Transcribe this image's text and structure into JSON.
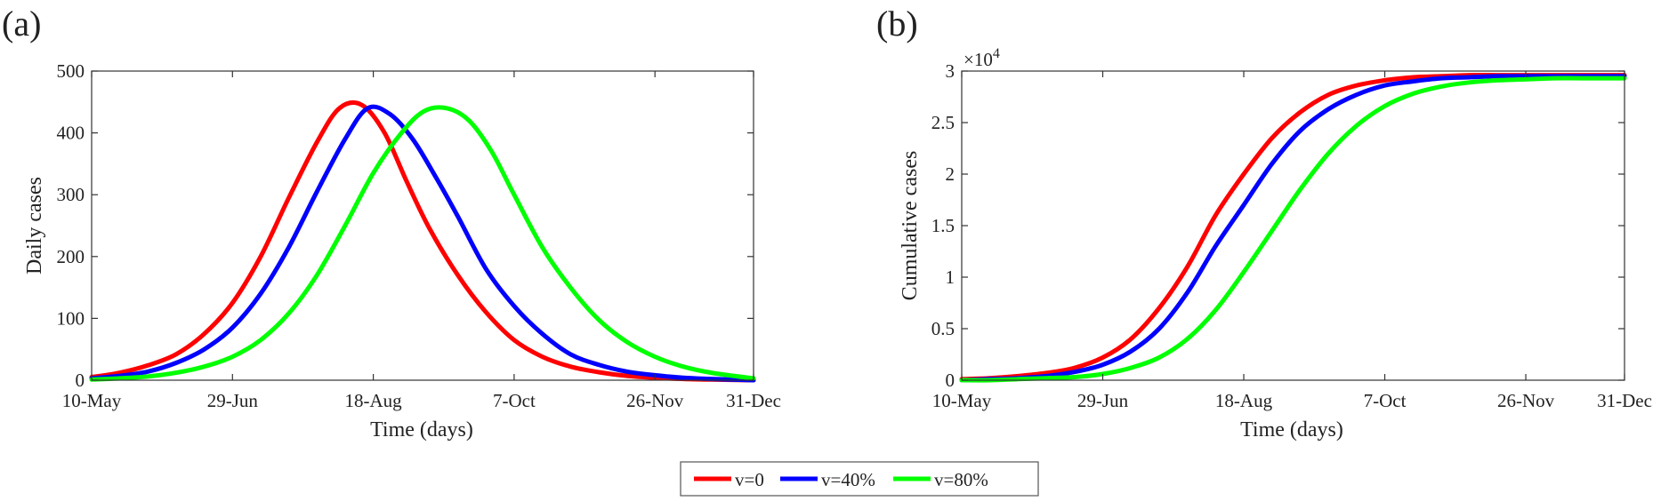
{
  "panels": [
    {
      "letter": "(a)",
      "xlabel": "Time (days)",
      "ylabel": "Daily cases",
      "exponent_label": ""
    },
    {
      "letter": "(b)",
      "xlabel": "Time (days)",
      "ylabel": "Cumulative cases",
      "exponent_label": "×10"
    }
  ],
  "legend": [
    "v=0",
    "v=40%",
    "v=80%"
  ],
  "colors": {
    "v0": "#ff0000",
    "v40": "#0000ff",
    "v80": "#00ff00"
  },
  "chart_data": [
    {
      "type": "line",
      "title": "(a)",
      "xlabel": "Time (days)",
      "ylabel": "Daily cases",
      "x_ticks": [
        {
          "day": 0,
          "label": "10-May"
        },
        {
          "day": 50,
          "label": "29-Jun"
        },
        {
          "day": 100,
          "label": "18-Aug"
        },
        {
          "day": 150,
          "label": "7-Oct"
        },
        {
          "day": 200,
          "label": "26-Nov"
        },
        {
          "day": 235,
          "label": "31-Dec"
        }
      ],
      "y_ticks": [
        {
          "v": 0,
          "label": "0"
        },
        {
          "v": 100,
          "label": "100"
        },
        {
          "v": 200,
          "label": "200"
        },
        {
          "v": 300,
          "label": "300"
        },
        {
          "v": 400,
          "label": "400"
        },
        {
          "v": 500,
          "label": "500"
        }
      ],
      "xlim": [
        0,
        235
      ],
      "ylim": [
        0,
        500
      ],
      "series": [
        {
          "name": "v=0",
          "color": "#ff0000",
          "x": [
            0,
            10,
            20,
            30,
            40,
            50,
            60,
            70,
            80,
            88,
            96,
            104,
            112,
            120,
            130,
            140,
            150,
            160,
            170,
            180,
            190,
            200,
            210,
            220,
            235
          ],
          "y": [
            5,
            12,
            24,
            42,
            75,
            125,
            200,
            295,
            385,
            440,
            445,
            400,
            320,
            245,
            170,
            110,
            65,
            38,
            22,
            13,
            7,
            4,
            2,
            1,
            0
          ]
        },
        {
          "name": "v=40%",
          "color": "#0000ff",
          "x": [
            0,
            10,
            20,
            30,
            40,
            50,
            60,
            70,
            80,
            90,
            98,
            106,
            114,
            122,
            130,
            140,
            150,
            160,
            170,
            180,
            190,
            200,
            210,
            220,
            235
          ],
          "y": [
            3,
            7,
            14,
            28,
            50,
            85,
            140,
            215,
            305,
            390,
            440,
            430,
            390,
            330,
            265,
            180,
            120,
            75,
            42,
            25,
            14,
            8,
            4,
            2,
            0
          ]
        },
        {
          "name": "v=80%",
          "color": "#00ff00",
          "x": [
            0,
            10,
            20,
            30,
            40,
            50,
            60,
            70,
            80,
            90,
            100,
            110,
            118,
            126,
            134,
            142,
            150,
            160,
            170,
            180,
            190,
            200,
            210,
            220,
            235
          ],
          "y": [
            1,
            3,
            6,
            12,
            22,
            38,
            65,
            108,
            170,
            250,
            335,
            400,
            435,
            440,
            420,
            370,
            300,
            215,
            150,
            98,
            62,
            38,
            22,
            12,
            3
          ]
        }
      ]
    },
    {
      "type": "line",
      "title": "(b)",
      "xlabel": "Time (days)",
      "ylabel": "Cumulative cases",
      "y_scale_factor": "×10^4",
      "x_ticks": [
        {
          "day": 0,
          "label": "10-May"
        },
        {
          "day": 50,
          "label": "29-Jun"
        },
        {
          "day": 100,
          "label": "18-Aug"
        },
        {
          "day": 150,
          "label": "7-Oct"
        },
        {
          "day": 200,
          "label": "26-Nov"
        },
        {
          "day": 235,
          "label": "31-Dec"
        }
      ],
      "y_ticks": [
        {
          "v": 0,
          "label": "0"
        },
        {
          "v": 0.5,
          "label": "0.5"
        },
        {
          "v": 1,
          "label": "1"
        },
        {
          "v": 1.5,
          "label": "1.5"
        },
        {
          "v": 2,
          "label": "2"
        },
        {
          "v": 2.5,
          "label": "2.5"
        },
        {
          "v": 3,
          "label": "3"
        }
      ],
      "xlim": [
        0,
        235
      ],
      "ylim": [
        0,
        3
      ],
      "series": [
        {
          "name": "v=0",
          "color": "#ff0000",
          "x": [
            0,
            10,
            20,
            30,
            40,
            50,
            60,
            70,
            80,
            90,
            100,
            110,
            120,
            130,
            140,
            150,
            160,
            170,
            180,
            190,
            200,
            210,
            220,
            235
          ],
          "y": [
            0.01,
            0.02,
            0.04,
            0.07,
            0.12,
            0.22,
            0.4,
            0.7,
            1.1,
            1.6,
            2.0,
            2.35,
            2.6,
            2.77,
            2.86,
            2.91,
            2.94,
            2.95,
            2.96,
            2.96,
            2.96,
            2.96,
            2.96,
            2.96
          ]
        },
        {
          "name": "v=40%",
          "color": "#0000ff",
          "x": [
            0,
            10,
            20,
            30,
            40,
            50,
            60,
            70,
            80,
            90,
            100,
            110,
            120,
            130,
            140,
            150,
            160,
            170,
            180,
            190,
            200,
            210,
            220,
            235
          ],
          "y": [
            0.0,
            0.01,
            0.02,
            0.04,
            0.08,
            0.15,
            0.28,
            0.5,
            0.85,
            1.3,
            1.7,
            2.1,
            2.42,
            2.63,
            2.77,
            2.86,
            2.9,
            2.93,
            2.94,
            2.95,
            2.95,
            2.95,
            2.95,
            2.95
          ]
        },
        {
          "name": "v=80%",
          "color": "#00ff00",
          "x": [
            0,
            10,
            20,
            30,
            40,
            50,
            60,
            70,
            80,
            90,
            100,
            110,
            120,
            130,
            140,
            150,
            160,
            170,
            180,
            190,
            200,
            210,
            220,
            235
          ],
          "y": [
            0.0,
            0.0,
            0.01,
            0.02,
            0.03,
            0.06,
            0.12,
            0.22,
            0.4,
            0.68,
            1.05,
            1.45,
            1.85,
            2.2,
            2.47,
            2.66,
            2.78,
            2.85,
            2.89,
            2.91,
            2.92,
            2.93,
            2.93,
            2.93
          ]
        }
      ]
    }
  ]
}
